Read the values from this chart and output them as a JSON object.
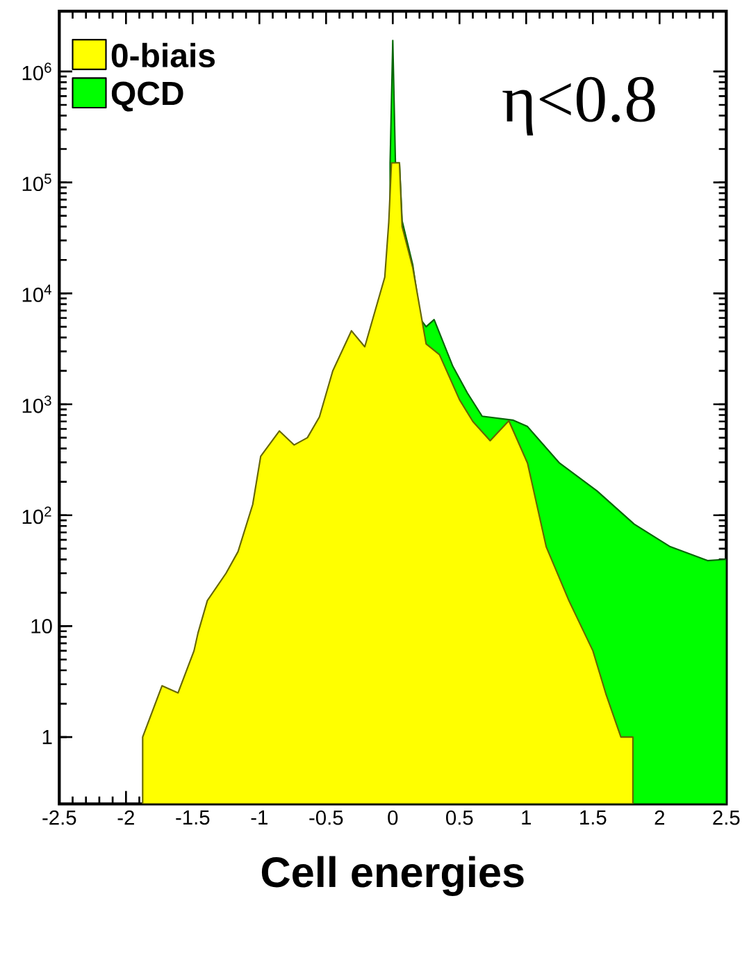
{
  "chart_data": {
    "type": "area",
    "xlabel": "Cell energies",
    "annotations": [
      "η<0.8"
    ],
    "log": "y",
    "legend": "top left",
    "xlim": [
      -2.5,
      2.5
    ],
    "ylim": [
      0.25,
      3500000
    ],
    "xticks": [
      -2.5,
      -2,
      -1.5,
      -1,
      -0.5,
      0,
      0.5,
      1,
      1.5,
      2,
      2.5
    ],
    "yticks": [
      1,
      10,
      {
        "value": 100,
        "label": "10$^{2}$"
      },
      {
        "value": 1000,
        "label": "10$^{3}$"
      },
      {
        "value": 10000,
        "label": "10$^{4}$"
      },
      {
        "value": 100000,
        "label": "10$^{5}$"
      },
      {
        "value": 1000000,
        "label": "10$^{6}$"
      }
    ],
    "series": [
      {
        "name": "QCD",
        "color": "#00ff00",
        "x": [
          -0.02,
          0,
          0.02,
          0.05,
          0.07,
          0.15,
          0.21,
          0.25,
          0.31,
          0.45,
          0.56,
          0.67,
          0.9,
          1.01,
          1.25,
          1.53,
          1.81,
          2.08,
          2.36,
          2.5
        ],
        "values": [
          150000,
          1900000,
          150000,
          150000,
          45000,
          18000,
          5800,
          5000,
          5800,
          2200,
          1260,
          780,
          720,
          630,
          295,
          166,
          83,
          52,
          39,
          40
        ]
      },
      {
        "name": "0-biais",
        "color": "#ffff00",
        "x": [
          -1.875,
          -1.73,
          -1.61,
          -1.49,
          -1.46,
          -1.39,
          -1.25,
          -1.16,
          -1.05,
          -0.99,
          -0.85,
          -0.74,
          -0.64,
          -0.55,
          -0.45,
          -0.31,
          -0.21,
          -0.06,
          -0.03,
          -0.01,
          0.05,
          0.07,
          0.15,
          0.25,
          0.35,
          0.5,
          0.6,
          0.73,
          0.87,
          1.01,
          1.15,
          1.32,
          1.5,
          1.6,
          1.71,
          1.8
        ],
        "values": [
          1,
          2.9,
          2.5,
          6,
          8.7,
          17,
          30,
          47,
          125,
          340,
          575,
          430,
          500,
          770,
          2000,
          4600,
          3300,
          14000,
          44000,
          150000,
          150000,
          40000,
          17000,
          3500,
          2800,
          1100,
          700,
          470,
          710,
          295,
          52,
          17,
          6,
          2.4,
          1,
          1
        ]
      }
    ]
  }
}
